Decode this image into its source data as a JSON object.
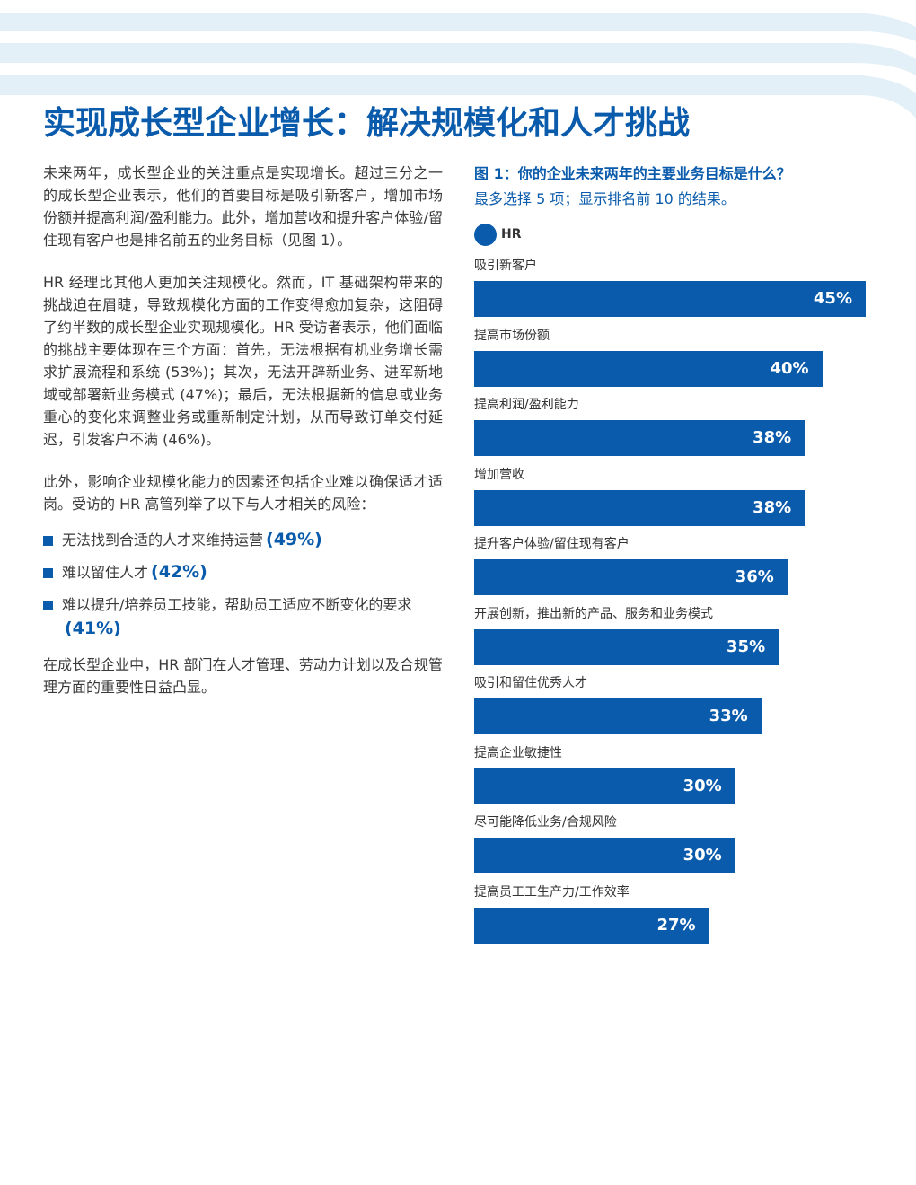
{
  "colors": {
    "accent": "#0a5bab",
    "wave_light": "#e4f0f8",
    "text": "#3a3a3a"
  },
  "page_title": "实现成长型企业增长：解决规模化和人才挑战",
  "body": {
    "para1": "未来两年，成长型企业的关注重点是实现增长。超过三分之一的成长型企业表示，他们的首要目标是吸引新客户，增加市场份额并提高利润/盈利能力。此外，增加营收和提升客户体验/留住现有客户也是排名前五的业务目标（见图 1）。",
    "para2": "HR 经理比其他人更加关注规模化。然而，IT 基础架构带来的挑战迫在眉睫，导致规模化方面的工作变得愈加复杂，这阻碍了约半数的成长型企业实现规模化。HR 受访者表示，他们面临的挑战主要体现在三个方面：首先，无法根据有机业务增长需求扩展流程和系统 (53%)；其次，无法开辟新业务、进军新地域或部署新业务模式 (47%)；最后，无法根据新的信息或业务重心的变化来调整业务或重新制定计划，从而导致订单交付延迟，引发客户不满 (46%)。",
    "para3": "此外，影响企业规模化能力的因素还包括企业难以确保适才适岗。受访的 HR 高管列举了以下与人才相关的风险：",
    "bullets": [
      {
        "text": "无法找到合适的人才来维持运营",
        "pct": "(49%)"
      },
      {
        "text": "难以留住人才",
        "pct": "(42%)"
      },
      {
        "text": "难以提升/培养员工技能，帮助员工适应不断变化的要求",
        "pct": "(41%)"
      }
    ],
    "para4": "在成长型企业中，HR 部门在人才管理、劳动力计划以及合规管理方面的重要性日益凸显。"
  },
  "figure": {
    "title": "图 1：你的企业未来两年的主要业务目标是什么？",
    "subtitle": "最多选择 5 项；显示排名前 10 的结果。",
    "legend_label": "HR"
  },
  "chart_data": {
    "type": "bar",
    "orientation": "horizontal",
    "categories": [
      "吸引新客户",
      "提高市场份额",
      "提高利润/盈利能力",
      "增加营收",
      "提升客户体验/留住现有客户",
      "开展创新，推出新的产品、服务和业务模式",
      "吸引和留住优秀人才",
      "提高企业敏捷性",
      "尽可能降低业务/合规风险",
      "提高员工工生产力/工作效率"
    ],
    "series": [
      {
        "name": "HR",
        "values": [
          45,
          40,
          38,
          38,
          36,
          35,
          33,
          30,
          30,
          27
        ]
      }
    ],
    "value_labels": [
      "45%",
      "40%",
      "38%",
      "38%",
      "36%",
      "35%",
      "33%",
      "30%",
      "30%",
      "27%"
    ],
    "xlim": [
      0,
      45
    ],
    "color": "#0a5bab"
  }
}
